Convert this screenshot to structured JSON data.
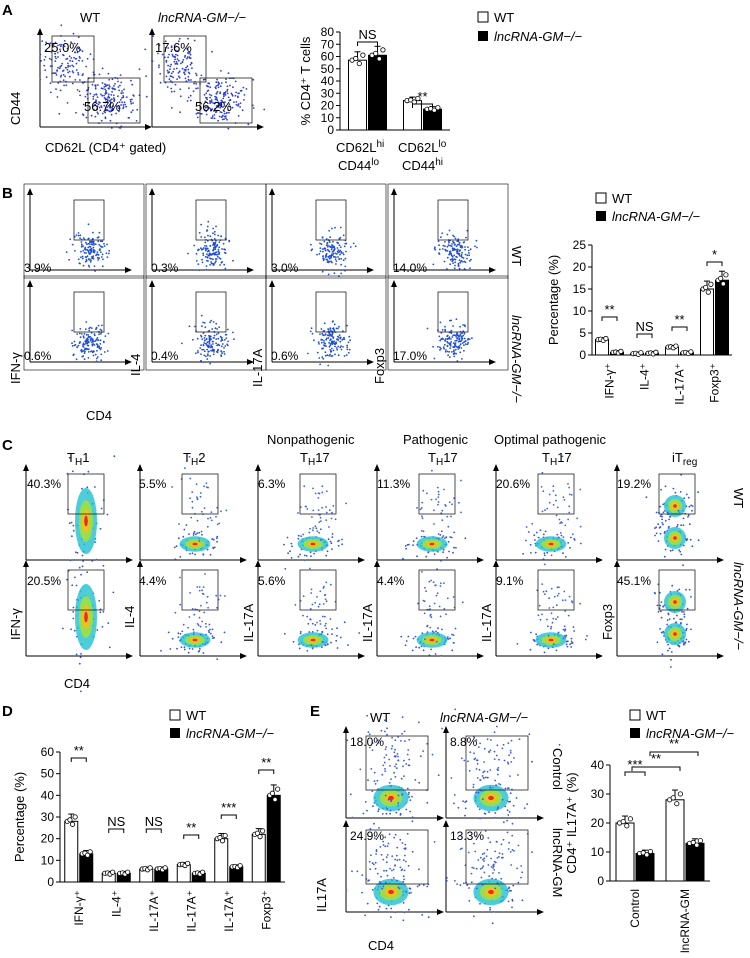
{
  "labels": {
    "a": "A",
    "b": "B",
    "c": "C",
    "d": "D",
    "e": "E"
  },
  "text": {
    "wt": "WT",
    "ko": "lncRNA-GM−/−",
    "ns": "NS",
    "p2": "**",
    "p1": "*",
    "p3": "***",
    "cd44": "CD44",
    "cd62l_axis": "CD62L (CD4⁺ gated)",
    "cd4": "CD4",
    "ifng": "IFN-γ",
    "il4": "IL-4",
    "il17a": "IL-17A",
    "il17a_e": "IL17A",
    "foxp3": "Foxp3",
    "pct_axis": "Percentage (%)",
    "cd4t_axis": "% CD4⁺ T cells",
    "e_axis": "CD4⁺ IL17A⁺ (%)",
    "control": "Control",
    "lncrna_gm": "lncRNA-GM"
  },
  "panel_a": {
    "flow_titles": [
      "WT",
      "lncRNA-GM−/−"
    ],
    "flow_values": [
      [
        "25.0%",
        "56.7%"
      ],
      [
        "17.6%",
        "56.2%"
      ]
    ]
  },
  "panel_b": {
    "wt_values": [
      "3.9%",
      "0.3%",
      "3.0%",
      "14.0%"
    ],
    "ko_values": [
      "0.6%",
      "0.4%",
      "0.6%",
      "17.0%"
    ]
  },
  "panel_c": {
    "titles_top": [
      "",
      "",
      "Nonpathogenic",
      "Pathogenic",
      "Optimal pathogenic",
      ""
    ],
    "titles": [
      "TH1",
      "TH2",
      "TH17",
      "TH17",
      "TH17",
      "iTreg"
    ],
    "wt_values": [
      "40.3%",
      "5.5%",
      "6.3%",
      "11.3%",
      "20.6%",
      "19.2%"
    ],
    "ko_values": [
      "20.5%",
      "4.4%",
      "5.6%",
      "4.4%",
      "9.1%",
      "45.1%"
    ],
    "ylabels": [
      "IFN-γ",
      "IL-4",
      "IL-17A",
      "IL-17A",
      "IL-17A",
      "Foxp3"
    ]
  },
  "panel_e": {
    "wt_values": [
      "18.0%",
      "24.9%"
    ],
    "ko_values": [
      "8.8%",
      "13.3%"
    ]
  },
  "chart_data": [
    {
      "panel": "A",
      "type": "bar",
      "ylabel": "% CD4⁺ T cells",
      "ylim": [
        0,
        80
      ],
      "yticks": [
        0,
        10,
        20,
        30,
        40,
        50,
        60,
        70,
        80
      ],
      "categories": [
        "CD62Lhi CD44lo",
        "CD62Llo CD44hi"
      ],
      "series": [
        {
          "name": "WT",
          "values": [
            57,
            24
          ]
        },
        {
          "name": "lncRNA-GM−/−",
          "values": [
            61,
            17
          ]
        }
      ],
      "annotations": [
        "NS",
        "**"
      ]
    },
    {
      "panel": "B",
      "type": "bar",
      "ylabel": "Percentage (%)",
      "ylim": [
        0,
        25
      ],
      "yticks": [
        0,
        5,
        10,
        15,
        20,
        25
      ],
      "categories": [
        "IFN-γ⁺",
        "IL-4⁺",
        "IL-17A⁺",
        "Foxp3⁺"
      ],
      "series": [
        {
          "name": "WT",
          "values": [
            3.5,
            0.3,
            1.8,
            15
          ]
        },
        {
          "name": "lncRNA-GM−/−",
          "values": [
            0.6,
            0.4,
            0.5,
            17
          ]
        }
      ],
      "annotations": [
        "**",
        "NS",
        "**",
        "*"
      ]
    },
    {
      "panel": "D",
      "type": "bar",
      "ylabel": "Percentage (%)",
      "ylim": [
        0,
        60
      ],
      "yticks": [
        0,
        10,
        20,
        30,
        40,
        50,
        60
      ],
      "categories": [
        "IFN-γ⁺",
        "IL-4⁺",
        "IL-17A⁺",
        "IL-17A⁺",
        "IL-17A⁺",
        "Foxp3⁺"
      ],
      "series": [
        {
          "name": "WT",
          "values": [
            28,
            4,
            6,
            8,
            20,
            22
          ]
        },
        {
          "name": "lncRNA-GM−/−",
          "values": [
            13,
            4,
            6,
            4,
            7,
            40
          ]
        }
      ],
      "annotations": [
        "**",
        "NS",
        "NS",
        "**",
        "***",
        "**"
      ]
    },
    {
      "panel": "E",
      "type": "bar",
      "ylabel": "CD4⁺ IL17A⁺ (%)",
      "ylim": [
        0,
        40
      ],
      "yticks": [
        0,
        10,
        20,
        30,
        40
      ],
      "categories": [
        "Control",
        "lncRNA-GM"
      ],
      "series": [
        {
          "name": "WT",
          "values": [
            20,
            28
          ]
        },
        {
          "name": "lncRNA-GM−/−",
          "values": [
            9.5,
            13
          ]
        }
      ],
      "annotations": [
        "***",
        "**",
        "**"
      ]
    }
  ]
}
